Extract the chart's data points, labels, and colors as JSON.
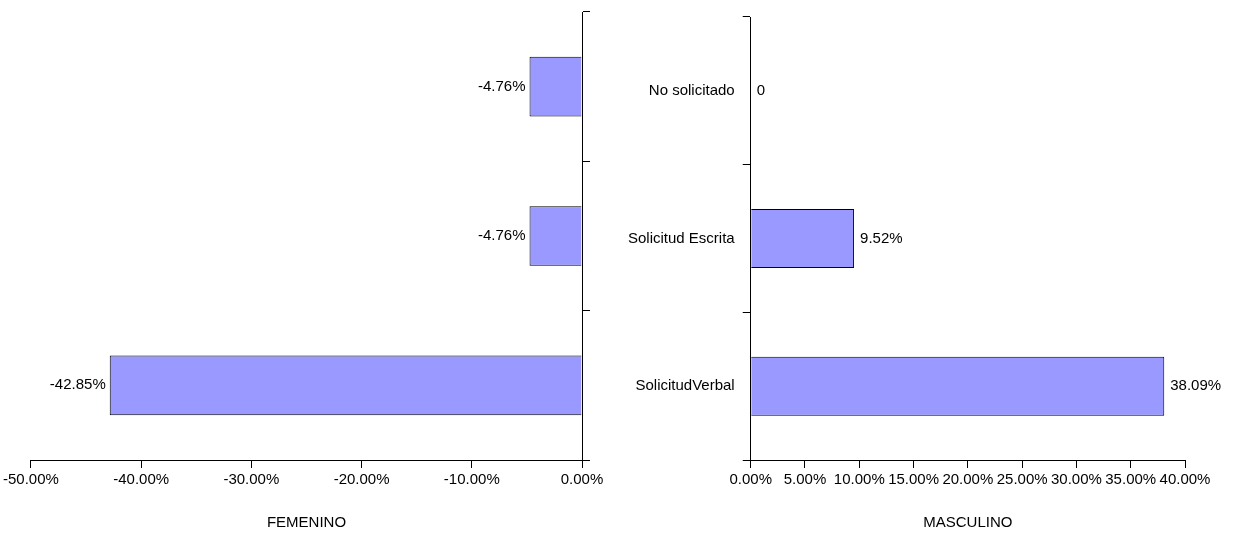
{
  "chart_data": [
    {
      "type": "bar",
      "orientation": "horizontal",
      "categories": [
        null,
        null,
        null
      ],
      "values": [
        -4.76,
        -4.76,
        -42.85
      ],
      "color": "#9999ff",
      "value_labels": [
        "-4.76%",
        "-4.76%",
        "-42.85%"
      ],
      "xlim": [
        -50,
        0
      ],
      "xticks": [
        {
          "value": -50,
          "label": "-50.00%"
        },
        {
          "value": -40,
          "label": "-40.00%"
        },
        {
          "value": -30,
          "label": "-30.00%"
        },
        {
          "value": -20,
          "label": "-20.00%"
        },
        {
          "value": -10,
          "label": "-10.00%"
        },
        {
          "value": 0,
          "label": "0.00%"
        }
      ],
      "xlabel": "FEMENINO",
      "tick_labels": "x"
    },
    {
      "type": "bar",
      "orientation": "horizontal",
      "categories": [
        "No solicitado",
        "Solicitud Escrita",
        "SolicitudVerbal"
      ],
      "values": [
        0,
        9.52,
        38.09
      ],
      "color": "#9999ff",
      "value_labels": [
        "0",
        "9.52%",
        "38.09%"
      ],
      "xlim": [
        0,
        40
      ],
      "xticks": [
        {
          "value": 0,
          "label": "0.00%"
        },
        {
          "value": 5,
          "label": "5.00%"
        },
        {
          "value": 10,
          "label": "10.00%"
        },
        {
          "value": 15,
          "label": "15.00%"
        },
        {
          "value": 20,
          "label": "20.00%"
        },
        {
          "value": 25,
          "label": "25.00%"
        },
        {
          "value": 30,
          "label": "30.00%"
        },
        {
          "value": 35,
          "label": "35.00%"
        },
        {
          "value": 40,
          "label": "40.00%"
        }
      ],
      "xlabel": "MASCULINO"
    }
  ]
}
